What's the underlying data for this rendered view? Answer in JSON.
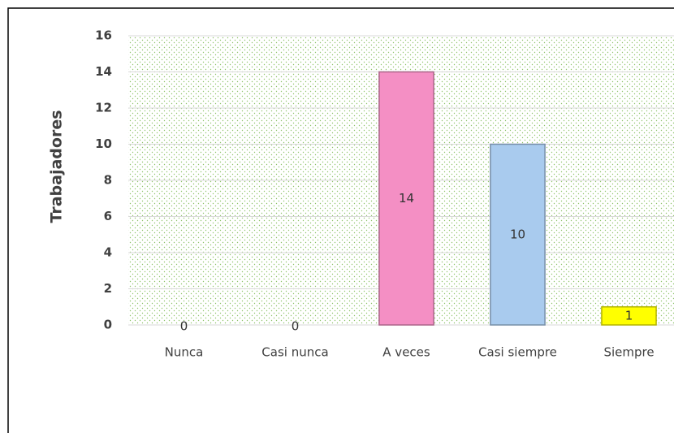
{
  "chart_data": {
    "type": "bar",
    "y_label": "Trabajadores",
    "categories": [
      "Nunca",
      "Casi nunca",
      "A veces",
      "Casi siempre",
      "Siempre"
    ],
    "values": [
      0,
      0,
      14,
      10,
      1
    ],
    "colors": [
      "#f48fc4",
      "#f48fc4",
      "#f48fc4",
      "#a9cbee",
      "#ffff00"
    ],
    "ylim": [
      0,
      16
    ],
    "yticks": [
      0,
      2,
      4,
      6,
      8,
      10,
      12,
      14,
      16
    ],
    "grid": true
  }
}
